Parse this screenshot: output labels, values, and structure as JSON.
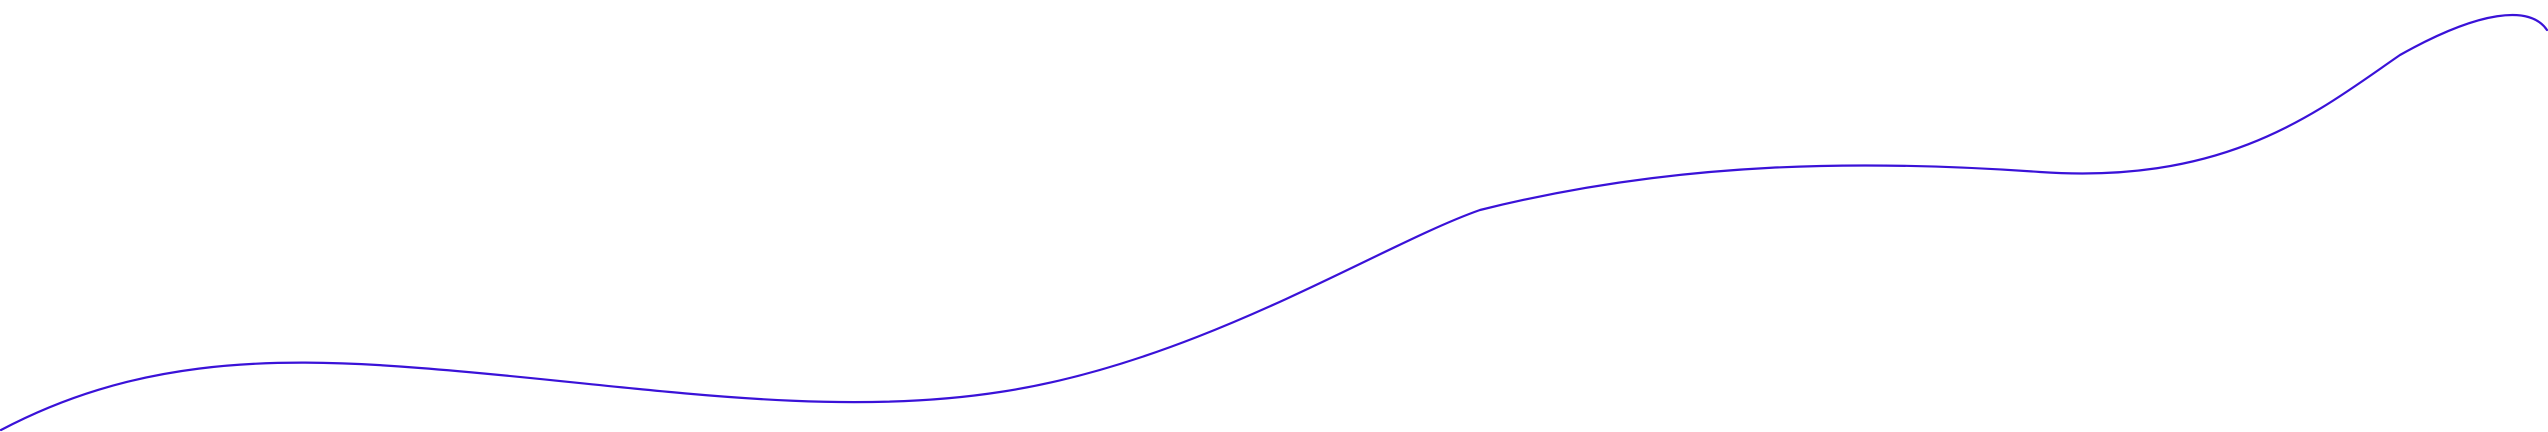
{
  "decoration": {
    "shape": "wave-line",
    "stroke_color": "#3a12d8",
    "background_color": "#ffffff"
  }
}
